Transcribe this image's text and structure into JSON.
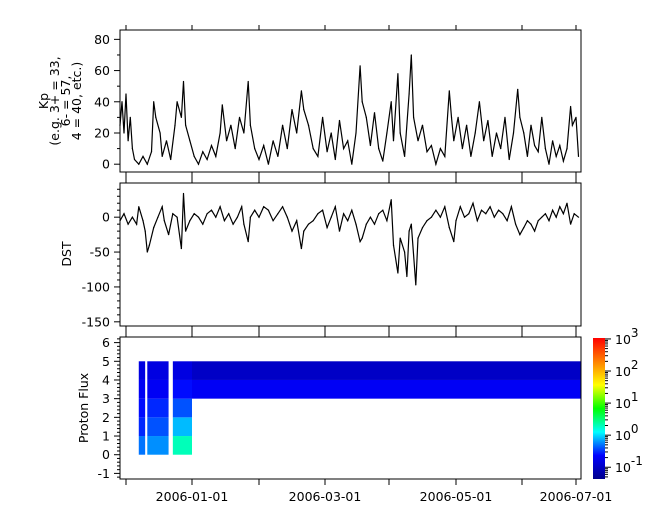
{
  "chart_data": [
    {
      "type": "line",
      "ylabel_lines": [
        "Kp",
        "(e.g. 3+ = 33,",
        "6- = 57,",
        "4 = 40, etc.)"
      ],
      "ylim": [
        -5,
        86
      ],
      "yticks": [
        0,
        20,
        40,
        60,
        80
      ],
      "grid": false,
      "points": [
        [
          "2005-11-28",
          25
        ],
        [
          "2005-11-29",
          40
        ],
        [
          "2005-11-30",
          20
        ],
        [
          "2005-12-01",
          45
        ],
        [
          "2005-12-02",
          15
        ],
        [
          "2005-12-03",
          30
        ],
        [
          "2005-12-04",
          10
        ],
        [
          "2005-12-05",
          3
        ],
        [
          "2005-12-07",
          0
        ],
        [
          "2005-12-09",
          5
        ],
        [
          "2005-12-11",
          0
        ],
        [
          "2005-12-13",
          8
        ],
        [
          "2005-12-14",
          40
        ],
        [
          "2005-12-15",
          30
        ],
        [
          "2005-12-17",
          20
        ],
        [
          "2005-12-18",
          5
        ],
        [
          "2005-12-20",
          15
        ],
        [
          "2005-12-22",
          3
        ],
        [
          "2005-12-24",
          25
        ],
        [
          "2005-12-25",
          40
        ],
        [
          "2005-12-27",
          30
        ],
        [
          "2005-12-28",
          53
        ],
        [
          "2005-12-29",
          25
        ],
        [
          "2005-12-31",
          15
        ],
        [
          "2006-01-02",
          5
        ],
        [
          "2006-01-04",
          0
        ],
        [
          "2006-01-06",
          8
        ],
        [
          "2006-01-08",
          3
        ],
        [
          "2006-01-10",
          12
        ],
        [
          "2006-01-12",
          5
        ],
        [
          "2006-01-14",
          20
        ],
        [
          "2006-01-15",
          38
        ],
        [
          "2006-01-17",
          15
        ],
        [
          "2006-01-19",
          25
        ],
        [
          "2006-01-21",
          10
        ],
        [
          "2006-01-23",
          30
        ],
        [
          "2006-01-25",
          20
        ],
        [
          "2006-01-27",
          53
        ],
        [
          "2006-01-28",
          25
        ],
        [
          "2006-01-30",
          10
        ],
        [
          "2006-02-01",
          3
        ],
        [
          "2006-02-03",
          12
        ],
        [
          "2006-02-05",
          0
        ],
        [
          "2006-02-07",
          15
        ],
        [
          "2006-02-09",
          5
        ],
        [
          "2006-02-11",
          25
        ],
        [
          "2006-02-13",
          10
        ],
        [
          "2006-02-15",
          35
        ],
        [
          "2006-02-17",
          20
        ],
        [
          "2006-02-19",
          47
        ],
        [
          "2006-02-20",
          35
        ],
        [
          "2006-02-22",
          25
        ],
        [
          "2006-02-24",
          10
        ],
        [
          "2006-02-26",
          5
        ],
        [
          "2006-02-28",
          30
        ],
        [
          "2006-03-02",
          8
        ],
        [
          "2006-03-04",
          20
        ],
        [
          "2006-03-06",
          3
        ],
        [
          "2006-03-08",
          28
        ],
        [
          "2006-03-10",
          10
        ],
        [
          "2006-03-12",
          15
        ],
        [
          "2006-03-14",
          0
        ],
        [
          "2006-03-16",
          20
        ],
        [
          "2006-03-18",
          63
        ],
        [
          "2006-03-19",
          40
        ],
        [
          "2006-03-21",
          30
        ],
        [
          "2006-03-23",
          12
        ],
        [
          "2006-03-25",
          33
        ],
        [
          "2006-03-27",
          10
        ],
        [
          "2006-03-29",
          2
        ],
        [
          "2006-03-31",
          20
        ],
        [
          "2006-04-02",
          40
        ],
        [
          "2006-04-03",
          15
        ],
        [
          "2006-04-05",
          58
        ],
        [
          "2006-04-06",
          20
        ],
        [
          "2006-04-08",
          5
        ],
        [
          "2006-04-10",
          45
        ],
        [
          "2006-04-11",
          70
        ],
        [
          "2006-04-12",
          30
        ],
        [
          "2006-04-14",
          15
        ],
        [
          "2006-04-16",
          25
        ],
        [
          "2006-04-18",
          8
        ],
        [
          "2006-04-20",
          12
        ],
        [
          "2006-04-22",
          0
        ],
        [
          "2006-04-24",
          10
        ],
        [
          "2006-04-26",
          5
        ],
        [
          "2006-04-28",
          47
        ],
        [
          "2006-04-29",
          30
        ],
        [
          "2006-04-30",
          15
        ],
        [
          "2006-05-02",
          30
        ],
        [
          "2006-05-04",
          10
        ],
        [
          "2006-05-06",
          25
        ],
        [
          "2006-05-08",
          5
        ],
        [
          "2006-05-10",
          20
        ],
        [
          "2006-05-12",
          40
        ],
        [
          "2006-05-14",
          15
        ],
        [
          "2006-05-16",
          28
        ],
        [
          "2006-05-18",
          5
        ],
        [
          "2006-05-20",
          20
        ],
        [
          "2006-05-22",
          10
        ],
        [
          "2006-05-24",
          30
        ],
        [
          "2006-05-26",
          3
        ],
        [
          "2006-05-28",
          20
        ],
        [
          "2006-05-30",
          48
        ],
        [
          "2006-05-31",
          30
        ],
        [
          "2006-06-02",
          20
        ],
        [
          "2006-06-04",
          5
        ],
        [
          "2006-06-06",
          25
        ],
        [
          "2006-06-08",
          12
        ],
        [
          "2006-06-10",
          8
        ],
        [
          "2006-06-12",
          30
        ],
        [
          "2006-06-14",
          10
        ],
        [
          "2006-06-16",
          0
        ],
        [
          "2006-06-18",
          15
        ],
        [
          "2006-06-20",
          5
        ],
        [
          "2006-06-22",
          12
        ],
        [
          "2006-06-24",
          2
        ],
        [
          "2006-06-26",
          10
        ],
        [
          "2006-06-28",
          37
        ],
        [
          "2006-06-29",
          25
        ],
        [
          "2006-07-01",
          30
        ],
        [
          "2006-07-02",
          5
        ]
      ]
    },
    {
      "type": "line",
      "ylabel": "DST",
      "ylim": [
        -156,
        49
      ],
      "yticks": [
        0,
        -50,
        -100,
        -150
      ],
      "grid": false,
      "points": [
        [
          "2005-11-28",
          -5
        ],
        [
          "2005-11-30",
          5
        ],
        [
          "2005-12-02",
          -10
        ],
        [
          "2005-12-04",
          0
        ],
        [
          "2005-12-06",
          -10
        ],
        [
          "2005-12-07",
          15
        ],
        [
          "2005-12-09",
          -5
        ],
        [
          "2005-12-10",
          -20
        ],
        [
          "2005-12-11",
          -50
        ],
        [
          "2005-12-12",
          -40
        ],
        [
          "2005-12-14",
          -15
        ],
        [
          "2005-12-16",
          0
        ],
        [
          "2005-12-18",
          15
        ],
        [
          "2005-12-19",
          -5
        ],
        [
          "2005-12-21",
          -25
        ],
        [
          "2005-12-23",
          5
        ],
        [
          "2005-12-25",
          0
        ],
        [
          "2005-12-27",
          -45
        ],
        [
          "2005-12-28",
          34
        ],
        [
          "2005-12-29",
          -20
        ],
        [
          "2005-12-31",
          -5
        ],
        [
          "2006-01-02",
          5
        ],
        [
          "2006-01-04",
          0
        ],
        [
          "2006-01-06",
          -10
        ],
        [
          "2006-01-08",
          5
        ],
        [
          "2006-01-10",
          10
        ],
        [
          "2006-01-12",
          0
        ],
        [
          "2006-01-14",
          15
        ],
        [
          "2006-01-16",
          -5
        ],
        [
          "2006-01-18",
          5
        ],
        [
          "2006-01-20",
          -10
        ],
        [
          "2006-01-22",
          0
        ],
        [
          "2006-01-24",
          15
        ],
        [
          "2006-01-25",
          -10
        ],
        [
          "2006-01-27",
          -35
        ],
        [
          "2006-01-28",
          0
        ],
        [
          "2006-01-30",
          10
        ],
        [
          "2006-02-01",
          0
        ],
        [
          "2006-02-03",
          15
        ],
        [
          "2006-02-05",
          10
        ],
        [
          "2006-02-07",
          -5
        ],
        [
          "2006-02-09",
          5
        ],
        [
          "2006-02-11",
          15
        ],
        [
          "2006-02-13",
          0
        ],
        [
          "2006-02-15",
          -20
        ],
        [
          "2006-02-17",
          -5
        ],
        [
          "2006-02-19",
          -45
        ],
        [
          "2006-02-20",
          -20
        ],
        [
          "2006-02-22",
          -10
        ],
        [
          "2006-02-24",
          -5
        ],
        [
          "2006-02-26",
          5
        ],
        [
          "2006-02-28",
          10
        ],
        [
          "2006-03-02",
          -15
        ],
        [
          "2006-03-04",
          0
        ],
        [
          "2006-03-06",
          15
        ],
        [
          "2006-03-08",
          -20
        ],
        [
          "2006-03-10",
          5
        ],
        [
          "2006-03-12",
          -5
        ],
        [
          "2006-03-14",
          10
        ],
        [
          "2006-03-16",
          -10
        ],
        [
          "2006-03-18",
          -35
        ],
        [
          "2006-03-19",
          -30
        ],
        [
          "2006-03-21",
          -10
        ],
        [
          "2006-03-23",
          0
        ],
        [
          "2006-03-25",
          -10
        ],
        [
          "2006-03-27",
          5
        ],
        [
          "2006-03-29",
          10
        ],
        [
          "2006-03-31",
          -5
        ],
        [
          "2006-04-02",
          25
        ],
        [
          "2006-04-03",
          -40
        ],
        [
          "2006-04-05",
          -80
        ],
        [
          "2006-04-06",
          -30
        ],
        [
          "2006-04-08",
          -50
        ],
        [
          "2006-04-09",
          -85
        ],
        [
          "2006-04-10",
          -20
        ],
        [
          "2006-04-11",
          -10
        ],
        [
          "2006-04-13",
          -97
        ],
        [
          "2006-04-14",
          -30
        ],
        [
          "2006-04-16",
          -15
        ],
        [
          "2006-04-18",
          -5
        ],
        [
          "2006-04-20",
          0
        ],
        [
          "2006-04-22",
          10
        ],
        [
          "2006-04-24",
          0
        ],
        [
          "2006-04-26",
          15
        ],
        [
          "2006-04-28",
          -15
        ],
        [
          "2006-04-30",
          -35
        ],
        [
          "2006-05-01",
          -5
        ],
        [
          "2006-05-03",
          15
        ],
        [
          "2006-05-05",
          0
        ],
        [
          "2006-05-07",
          5
        ],
        [
          "2006-05-09",
          20
        ],
        [
          "2006-05-11",
          -5
        ],
        [
          "2006-05-13",
          10
        ],
        [
          "2006-05-15",
          5
        ],
        [
          "2006-05-17",
          15
        ],
        [
          "2006-05-19",
          0
        ],
        [
          "2006-05-21",
          10
        ],
        [
          "2006-05-23",
          5
        ],
        [
          "2006-05-25",
          -5
        ],
        [
          "2006-05-27",
          15
        ],
        [
          "2006-05-29",
          -10
        ],
        [
          "2006-05-31",
          -25
        ],
        [
          "2006-06-02",
          -15
        ],
        [
          "2006-06-04",
          -5
        ],
        [
          "2006-06-06",
          -10
        ],
        [
          "2006-06-08",
          -20
        ],
        [
          "2006-06-10",
          -5
        ],
        [
          "2006-06-12",
          0
        ],
        [
          "2006-06-14",
          5
        ],
        [
          "2006-06-16",
          -5
        ],
        [
          "2006-06-18",
          10
        ],
        [
          "2006-06-20",
          0
        ],
        [
          "2006-06-22",
          15
        ],
        [
          "2006-06-24",
          5
        ],
        [
          "2006-06-26",
          20
        ],
        [
          "2006-06-28",
          -10
        ],
        [
          "2006-06-30",
          5
        ],
        [
          "2006-07-02",
          0
        ]
      ]
    },
    {
      "type": "heatmap",
      "ylabel": "Proton Flux",
      "ylim": [
        -1.3,
        6.3
      ],
      "yticks": [
        -1,
        0,
        1,
        2,
        3,
        4,
        5,
        6
      ],
      "channels": [
        0,
        1,
        2,
        3,
        4
      ],
      "segments": [
        {
          "start": "2005-12-07",
          "end": "2005-12-10",
          "values": [
            0.5,
            0.3,
            0.25,
            0.2,
            0.15
          ]
        },
        {
          "start": "2005-12-11",
          "end": "2005-12-21",
          "values": [
            0.6,
            0.4,
            0.3,
            0.2,
            0.15
          ]
        },
        {
          "start": "2005-12-23",
          "end": "2006-01-01",
          "values": [
            2.0,
            0.8,
            0.4,
            0.25,
            0.15
          ]
        },
        {
          "start": "2006-01-01",
          "end": "2006-07-03",
          "values": [
            null,
            null,
            null,
            0.2,
            0.1
          ]
        }
      ],
      "colorbar": {
        "scale": "log",
        "range": [
          0.043,
          1070
        ],
        "ticks": [
          {
            "value": 0.1,
            "base": "10",
            "exp": "-1"
          },
          {
            "value": 1,
            "base": "10",
            "exp": "0"
          },
          {
            "value": 10,
            "base": "10",
            "exp": "1"
          },
          {
            "value": 100,
            "base": "10",
            "exp": "2"
          },
          {
            "value": 1000,
            "base": "10",
            "exp": "3"
          }
        ],
        "colormap": [
          "#00008c",
          "#0000ff",
          "#00ffff",
          "#00ff00",
          "#ffff00",
          "#ff8000",
          "#ff0000"
        ]
      }
    }
  ],
  "xaxis": {
    "range": [
      "2005-11-28",
      "2006-07-03"
    ],
    "ticks": [
      "2005-12-01",
      "2006-01-01",
      "2006-02-01",
      "2006-03-01",
      "2006-04-01",
      "2006-05-01",
      "2006-06-01",
      "2006-07-01"
    ],
    "labels": [
      "2006-01-01",
      "2006-03-01",
      "2006-05-01",
      "2006-07-01"
    ]
  }
}
